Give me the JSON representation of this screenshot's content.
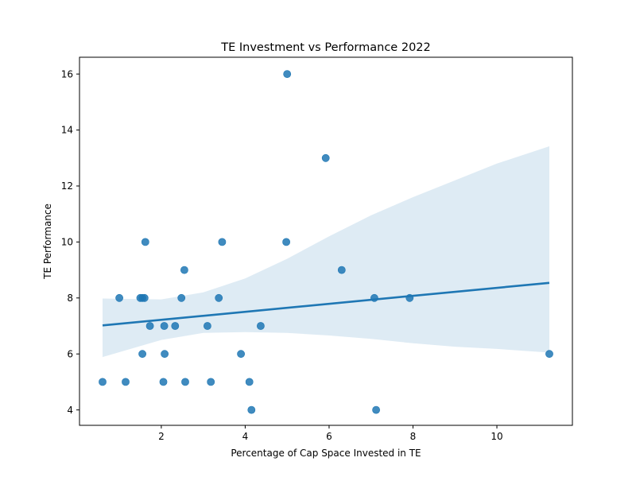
{
  "chart_data": {
    "type": "scatter",
    "title": "TE Investment vs Performance 2022",
    "xlabel": "Percentage of Cap Space Invested in TE",
    "ylabel": "TE Performance",
    "xlim": [
      0.05,
      11.8
    ],
    "ylim": [
      3.45,
      16.6
    ],
    "xticks": [
      2,
      4,
      6,
      8,
      10
    ],
    "yticks": [
      4,
      6,
      8,
      10,
      12,
      14,
      16
    ],
    "grid": false,
    "legend": "none",
    "point_color": "#1f77b4",
    "fit_color": "#1f77b4",
    "band_color": "#1f77b4",
    "points": [
      {
        "x": 0.6,
        "y": 5
      },
      {
        "x": 1.15,
        "y": 5
      },
      {
        "x": 2.05,
        "y": 5
      },
      {
        "x": 2.57,
        "y": 5
      },
      {
        "x": 3.18,
        "y": 5
      },
      {
        "x": 4.1,
        "y": 5
      },
      {
        "x": 4.15,
        "y": 4
      },
      {
        "x": 7.12,
        "y": 4
      },
      {
        "x": 1.55,
        "y": 6
      },
      {
        "x": 2.08,
        "y": 6
      },
      {
        "x": 3.9,
        "y": 6
      },
      {
        "x": 11.25,
        "y": 6
      },
      {
        "x": 1.73,
        "y": 7
      },
      {
        "x": 2.07,
        "y": 7
      },
      {
        "x": 2.33,
        "y": 7
      },
      {
        "x": 3.1,
        "y": 7
      },
      {
        "x": 4.37,
        "y": 7
      },
      {
        "x": 1.0,
        "y": 8
      },
      {
        "x": 1.5,
        "y": 8
      },
      {
        "x": 1.55,
        "y": 8
      },
      {
        "x": 1.6,
        "y": 8
      },
      {
        "x": 2.48,
        "y": 8
      },
      {
        "x": 3.37,
        "y": 8
      },
      {
        "x": 7.08,
        "y": 8
      },
      {
        "x": 7.92,
        "y": 8
      },
      {
        "x": 2.55,
        "y": 9
      },
      {
        "x": 6.3,
        "y": 9
      },
      {
        "x": 1.62,
        "y": 10
      },
      {
        "x": 3.45,
        "y": 10
      },
      {
        "x": 4.98,
        "y": 10
      },
      {
        "x": 5.92,
        "y": 13
      },
      {
        "x": 5.0,
        "y": 16
      }
    ],
    "regression": {
      "x": [
        0.6,
        11.25
      ],
      "y": [
        7.02,
        8.54
      ]
    },
    "confidence_band": {
      "x": [
        0.6,
        2.0,
        3.0,
        4.0,
        5.0,
        6.0,
        7.0,
        8.0,
        9.0,
        10.0,
        11.25
      ],
      "upper": [
        7.98,
        7.95,
        8.2,
        8.7,
        9.4,
        10.2,
        10.95,
        11.6,
        12.2,
        12.8,
        13.42
      ],
      "lower": [
        5.89,
        6.5,
        6.75,
        6.78,
        6.75,
        6.66,
        6.54,
        6.38,
        6.26,
        6.18,
        6.05
      ]
    }
  }
}
